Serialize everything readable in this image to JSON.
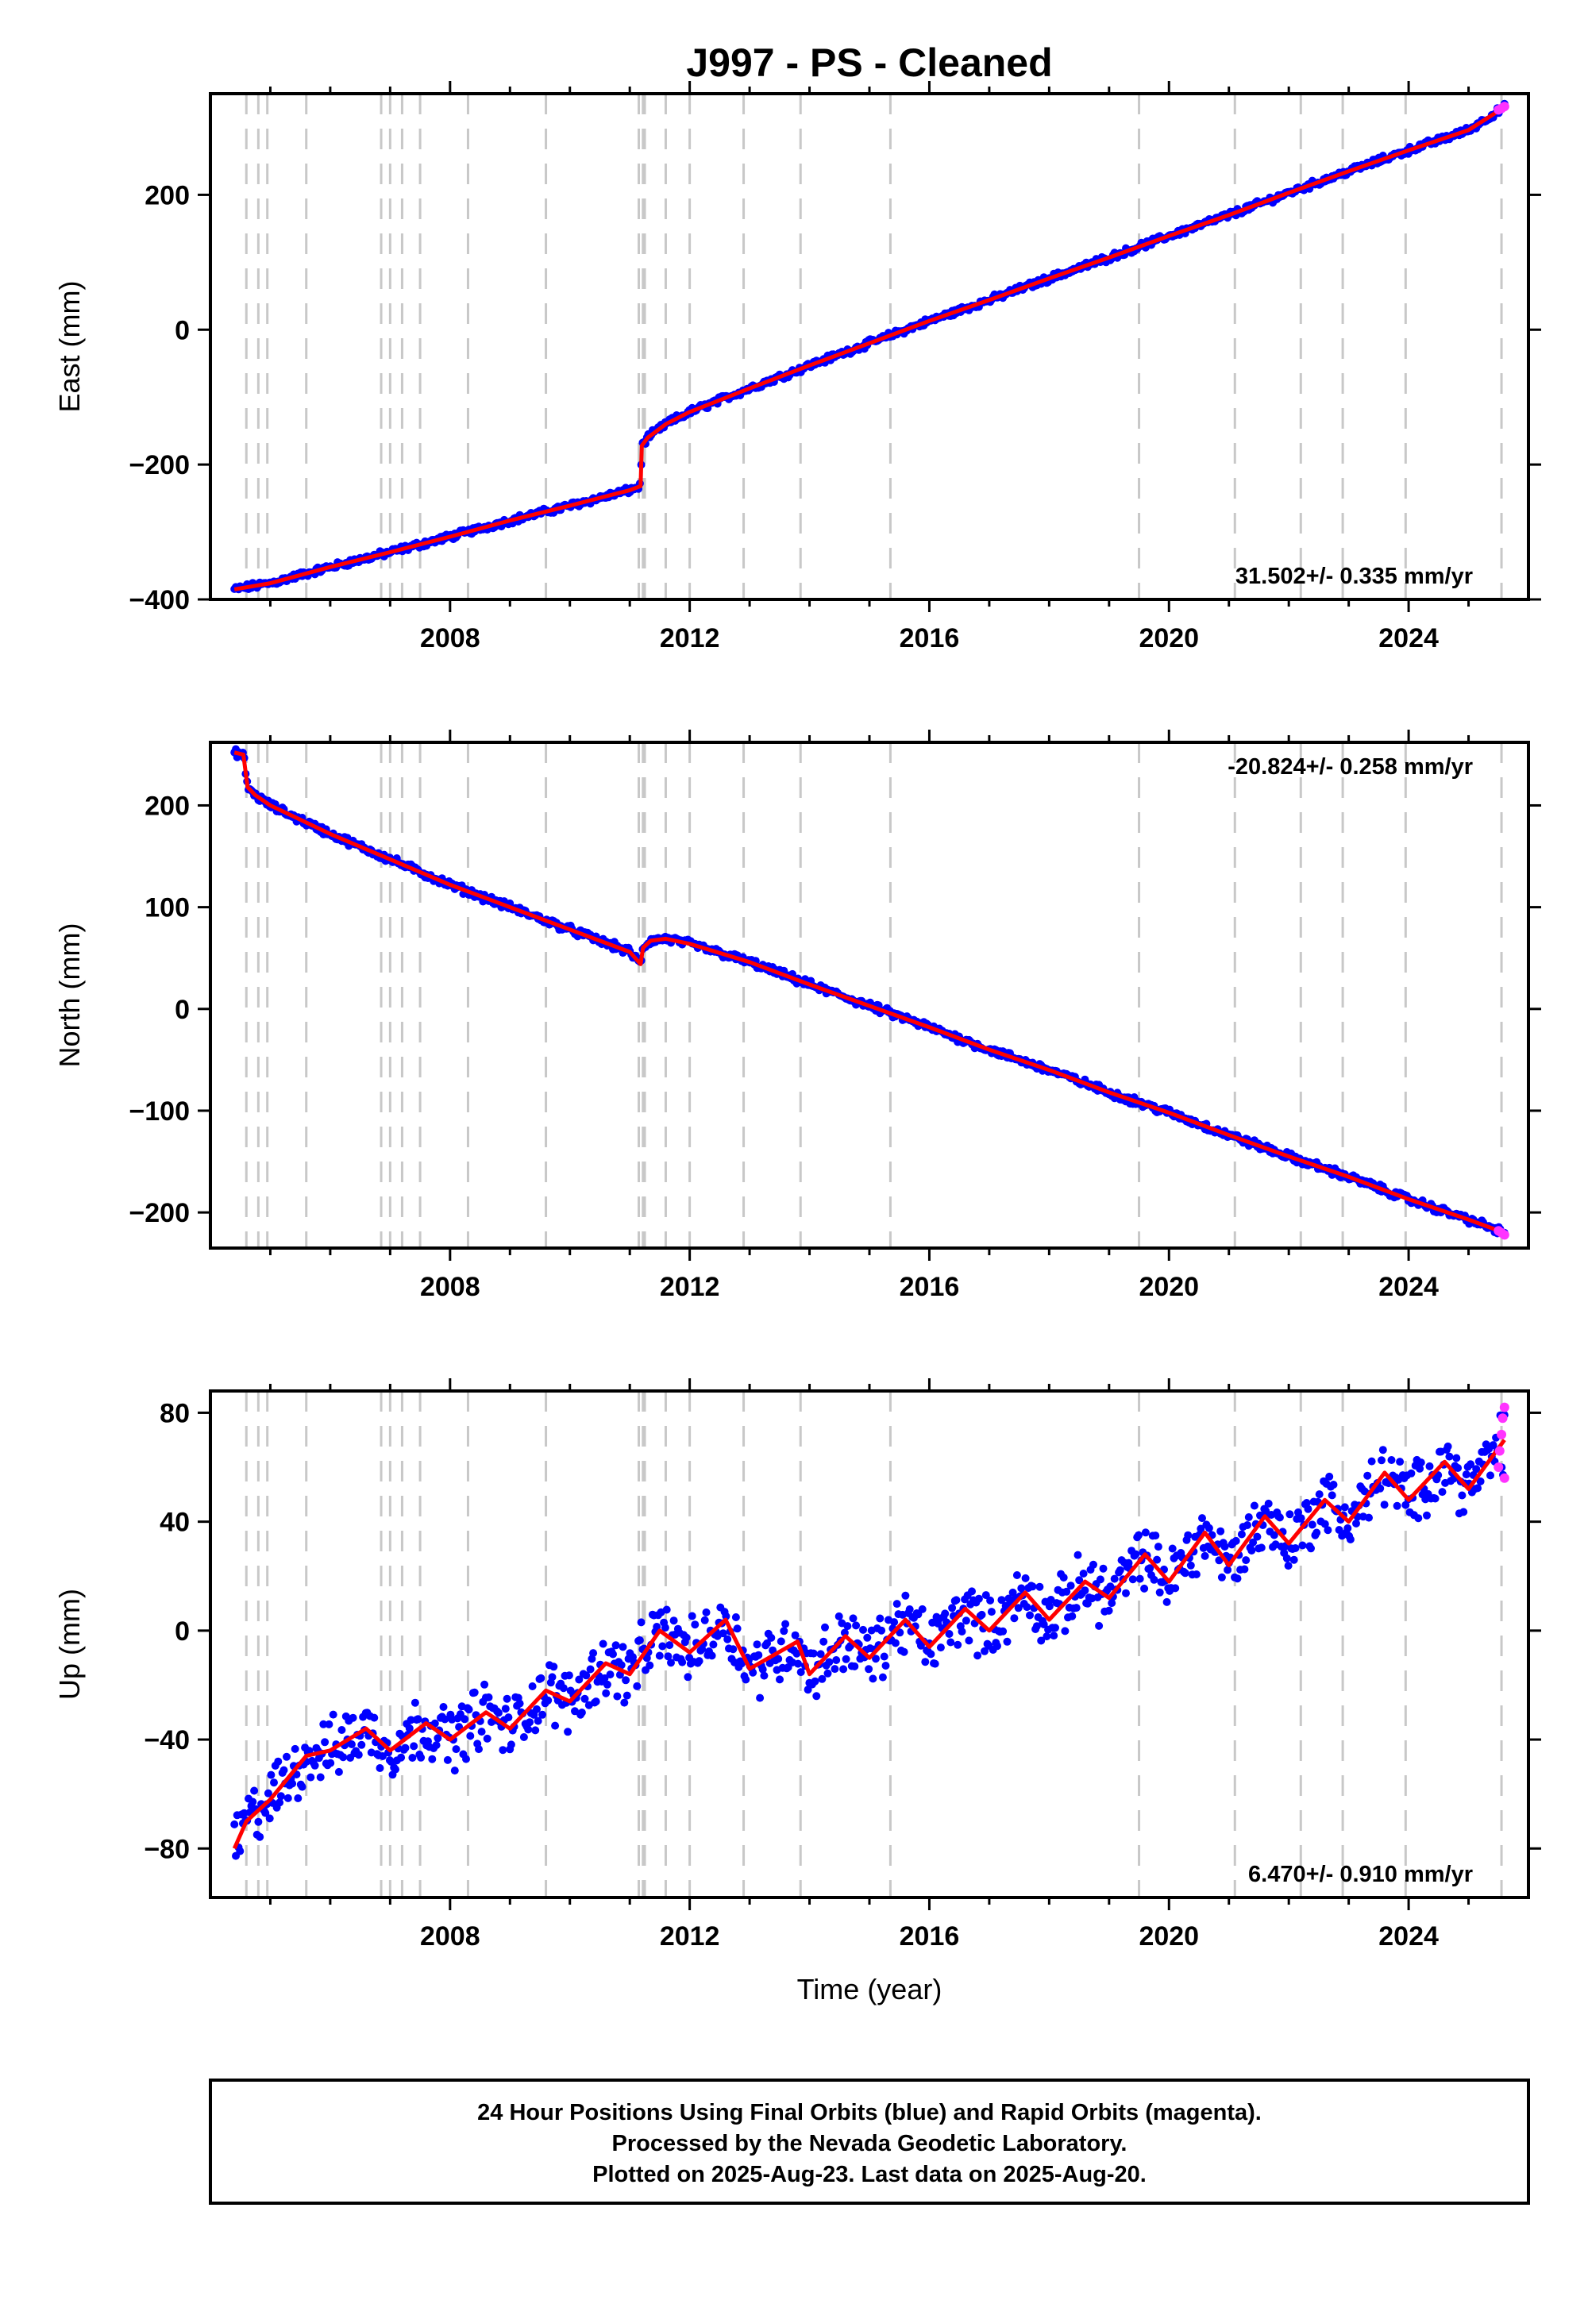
{
  "title": "J997  - PS - Cleaned",
  "footer": {
    "lines": [
      "24 Hour Positions Using Final Orbits (blue) and Rapid Orbits (magenta).",
      "Processed by the Nevada Geodetic Laboratory.",
      "Plotted on 2025-Aug-23. Last data on 2025-Aug-20."
    ]
  },
  "colors": {
    "final_orbits": "#0000ff",
    "rapid_orbits": "#ff33ff",
    "model_fit": "#ff0000",
    "event_lines": "#c8c8c8",
    "frame": "#000000"
  },
  "chart_data": [
    {
      "type": "scatter",
      "title": "",
      "xlabel": "",
      "ylabel": "East (mm)",
      "xlim": [
        2004.0,
        2026.0
      ],
      "ylim": [
        -400,
        350
      ],
      "x_ticks": [
        "2008",
        "2012",
        "2016",
        "2020",
        "2024"
      ],
      "y_ticks": [
        "200",
        "0",
        "−200",
        "−400"
      ],
      "y_tick_values": [
        200,
        0,
        -200,
        -400
      ],
      "rate_label": "31.502+/- 0.335 mm/yr",
      "event_lines_x": [
        2004.6,
        2004.8,
        2004.95,
        2005.6,
        2006.85,
        2007.0,
        2007.2,
        2007.5,
        2008.3,
        2009.6,
        2011.15,
        2011.22,
        2011.25,
        2011.6,
        2012.0,
        2012.9,
        2013.85,
        2015.35,
        2019.5,
        2021.1,
        2022.2,
        2022.9,
        2023.95,
        2025.55
      ],
      "series": [
        {
          "x": [
            2004.4,
            2005.0,
            2006.0,
            2007.0,
            2008.0,
            2009.0,
            2010.0,
            2011.0,
            2011.18,
            2011.2,
            2011.3,
            2011.6,
            2012.0,
            2013.0,
            2014.0,
            2015.0,
            2016.0,
            2017.0,
            2018.0,
            2019.0,
            2020.0,
            2021.0,
            2022.0,
            2023.0,
            2024.0,
            2025.0,
            2025.6
          ],
          "y": [
            -385,
            -376,
            -352,
            -330,
            -307,
            -283,
            -261,
            -238,
            -232,
            -172,
            -160,
            -140,
            -122,
            -87,
            -53,
            -20,
            13,
            44,
            76,
            107,
            139,
            170,
            203,
            235,
            266,
            296,
            330
          ]
        }
      ],
      "rapid_x": [
        2025.5,
        2025.55,
        2025.6
      ],
      "rapid_y": [
        326,
        328,
        331
      ]
    },
    {
      "type": "scatter",
      "title": "",
      "xlabel": "",
      "ylabel": "North (mm)",
      "xlim": [
        2004.0,
        2026.0
      ],
      "ylim": [
        -235,
        262
      ],
      "x_ticks": [
        "2008",
        "2012",
        "2016",
        "2020",
        "2024"
      ],
      "y_ticks": [
        "200",
        "100",
        "0",
        "−100",
        "−200"
      ],
      "y_tick_values": [
        200,
        100,
        0,
        -100,
        -200
      ],
      "rate_label": "-20.824+/- 0.258 mm/yr",
      "event_lines_x": [
        2004.6,
        2004.8,
        2004.95,
        2005.6,
        2006.85,
        2007.0,
        2007.2,
        2007.5,
        2008.3,
        2009.6,
        2011.15,
        2011.22,
        2011.25,
        2011.6,
        2012.0,
        2012.9,
        2013.85,
        2015.35,
        2019.5,
        2021.1,
        2022.2,
        2022.9,
        2023.95,
        2025.55
      ],
      "series": [
        {
          "x": [
            2004.4,
            2004.55,
            2004.62,
            2004.75,
            2005.0,
            2005.5,
            2006.0,
            2007.0,
            2008.0,
            2009.0,
            2010.0,
            2011.0,
            2011.18,
            2011.22,
            2011.35,
            2011.6,
            2012.0,
            2013.0,
            2014.0,
            2015.0,
            2016.0,
            2017.0,
            2018.0,
            2019.0,
            2020.0,
            2021.0,
            2022.0,
            2023.0,
            2024.0,
            2025.0,
            2025.6
          ],
          "y": [
            252,
            250,
            218,
            210,
            200,
            186,
            172,
            147,
            122,
            100,
            78,
            56,
            44,
            60,
            67,
            69,
            64,
            46,
            24,
            3,
            -18,
            -40,
            -60,
            -82,
            -102,
            -124,
            -145,
            -165,
            -187,
            -207,
            -220
          ]
        }
      ],
      "rapid_x": [
        2025.5,
        2025.55,
        2025.6
      ],
      "rapid_y": [
        -218,
        -220,
        -222
      ]
    },
    {
      "type": "scatter",
      "title": "",
      "xlabel": "Time (year)",
      "ylabel": "Up (mm)",
      "xlim": [
        2004.0,
        2026.0
      ],
      "ylim": [
        -98,
        88
      ],
      "x_ticks": [
        "2008",
        "2012",
        "2016",
        "2020",
        "2024"
      ],
      "y_ticks": [
        "80",
        "40",
        "0",
        "−40",
        "−80"
      ],
      "y_tick_values": [
        80,
        40,
        0,
        -40,
        -80
      ],
      "rate_label": "6.470+/- 0.910 mm/yr",
      "event_lines_x": [
        2004.6,
        2004.8,
        2004.95,
        2005.6,
        2006.85,
        2007.0,
        2007.2,
        2007.5,
        2008.3,
        2009.6,
        2011.15,
        2011.22,
        2011.25,
        2011.6,
        2012.0,
        2012.9,
        2013.85,
        2015.35,
        2019.5,
        2021.1,
        2022.2,
        2022.9,
        2023.95,
        2025.55
      ],
      "series": [
        {
          "x": [
            2004.4,
            2004.6,
            2005.0,
            2005.6,
            2006.0,
            2006.6,
            2007.0,
            2007.6,
            2008.0,
            2008.6,
            2009.0,
            2009.6,
            2010.0,
            2010.6,
            2011.0,
            2011.5,
            2012.0,
            2012.6,
            2013.0,
            2013.8,
            2014.0,
            2014.6,
            2015.0,
            2015.6,
            2016.0,
            2016.6,
            2017.0,
            2017.6,
            2018.0,
            2018.6,
            2019.0,
            2019.6,
            2020.0,
            2020.6,
            2021.0,
            2021.6,
            2022.0,
            2022.6,
            2023.0,
            2023.6,
            2024.0,
            2024.6,
            2025.0,
            2025.6
          ],
          "y": [
            -80,
            -70,
            -62,
            -46,
            -44,
            -36,
            -44,
            -34,
            -40,
            -30,
            -36,
            -22,
            -26,
            -12,
            -16,
            0,
            -8,
            4,
            -14,
            -4,
            -16,
            -2,
            -10,
            4,
            -6,
            8,
            0,
            14,
            4,
            18,
            12,
            28,
            18,
            36,
            24,
            42,
            32,
            48,
            40,
            58,
            48,
            62,
            52,
            70
          ]
        }
      ],
      "rapid_x": [
        2025.5,
        2025.52,
        2025.55,
        2025.57,
        2025.6,
        2025.6
      ],
      "rapid_y": [
        60,
        66,
        72,
        78,
        82,
        56
      ]
    }
  ]
}
